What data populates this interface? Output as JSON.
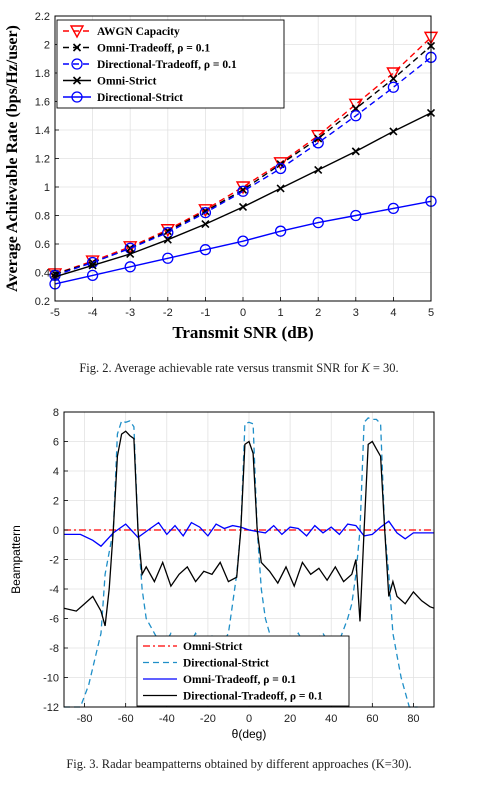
{
  "chart_data": [
    {
      "type": "line",
      "title": "",
      "xlabel": "Transmit SNR (dB)",
      "ylabel": "Average Achievable Rate (bps/Hz/user)",
      "xlim": [
        -5,
        5
      ],
      "ylim": [
        0.2,
        2.2
      ],
      "xticks": [
        -5,
        -4,
        -3,
        -2,
        -1,
        0,
        1,
        2,
        3,
        4,
        5
      ],
      "yticks": [
        0.2,
        0.4,
        0.6,
        0.8,
        1,
        1.2,
        1.4,
        1.6,
        1.8,
        2,
        2.2
      ],
      "grid": true,
      "legend_position": "top-left",
      "x": [
        -5,
        -4,
        -3,
        -2,
        -1,
        0,
        1,
        2,
        3,
        4,
        5
      ],
      "series": [
        {
          "name": "AWGN Capacity",
          "color": "#ff0000",
          "dash": "dashed",
          "marker": "triangle-down",
          "values": [
            0.39,
            0.48,
            0.58,
            0.7,
            0.84,
            1.0,
            1.17,
            1.36,
            1.58,
            1.8,
            2.05
          ]
        },
        {
          "name": "Omni-Tradeoff, ρ = 0.1",
          "color": "#000000",
          "dash": "dashed",
          "marker": "x",
          "values": [
            0.39,
            0.47,
            0.57,
            0.69,
            0.83,
            0.98,
            1.16,
            1.34,
            1.55,
            1.76,
            1.99
          ]
        },
        {
          "name": "Directional-Tradeoff, ρ = 0.1",
          "color": "#0000ff",
          "dash": "dashed",
          "marker": "circle",
          "values": [
            0.38,
            0.47,
            0.57,
            0.68,
            0.82,
            0.97,
            1.13,
            1.31,
            1.5,
            1.7,
            1.91
          ]
        },
        {
          "name": "Omni-Strict",
          "color": "#000000",
          "dash": "solid",
          "marker": "x",
          "values": [
            0.37,
            0.45,
            0.53,
            0.63,
            0.74,
            0.86,
            0.99,
            1.12,
            1.25,
            1.39,
            1.52
          ]
        },
        {
          "name": "Directional-Strict",
          "color": "#0000ff",
          "dash": "solid",
          "marker": "circle",
          "values": [
            0.32,
            0.38,
            0.44,
            0.5,
            0.56,
            0.62,
            0.69,
            0.75,
            0.8,
            0.85,
            0.9
          ]
        }
      ]
    },
    {
      "type": "line",
      "title": "",
      "xlabel": "θ(deg)",
      "ylabel": "Beampattern",
      "xlim": [
        -90,
        90
      ],
      "ylim": [
        -12,
        8
      ],
      "xticks": [
        -80,
        -60,
        -40,
        -20,
        0,
        20,
        40,
        60,
        80
      ],
      "yticks": [
        -12,
        -10,
        -8,
        -6,
        -4,
        -2,
        0,
        2,
        4,
        6,
        8
      ],
      "grid": true,
      "legend_position": "bottom-center",
      "series": [
        {
          "name": "Omni-Strict",
          "color": "#ff0000",
          "dash": "dashdot",
          "x": [
            -90,
            90
          ],
          "values": [
            0,
            0
          ]
        },
        {
          "name": "Directional-Strict",
          "color": "#1f8fc8",
          "dash": "dashed",
          "x": [
            -90,
            -82,
            -78,
            -72,
            -70,
            -66,
            -64,
            -62,
            -60,
            -58,
            -56,
            -54,
            -52,
            -50,
            -46,
            -42,
            -38,
            -34,
            -30,
            -26,
            -22,
            -18,
            -14,
            -10,
            -8,
            -6,
            -4,
            -2,
            0,
            2,
            4,
            6,
            8,
            10,
            12,
            16,
            20,
            24,
            28,
            32,
            36,
            40,
            44,
            48,
            50,
            52,
            54,
            56,
            58,
            60,
            62,
            64,
            66,
            68,
            70,
            74,
            78,
            82
          ],
          "values": [
            -12,
            -12,
            -10.5,
            -7,
            -3,
            0,
            6.5,
            7.4,
            7.3,
            7.4,
            7,
            0,
            -4,
            -6,
            -7,
            -8,
            -7,
            -7.5,
            -8,
            -7,
            -8,
            -7.2,
            -8,
            -7,
            -5,
            -3,
            0,
            7.2,
            7.3,
            7.2,
            0,
            -4,
            -6,
            -7,
            -8,
            -7.5,
            -8,
            -7,
            -8,
            -7.5,
            -7,
            -8,
            -7.5,
            -6,
            -5,
            -3,
            0,
            7.3,
            7.6,
            7.5,
            7.5,
            7.2,
            0,
            -3,
            -7,
            -10,
            -12,
            -12
          ]
        },
        {
          "name": "Omni-Tradeoff, ρ = 0.1",
          "color": "#0000ff",
          "dash": "solid",
          "x": [
            -90,
            -82,
            -76,
            -72,
            -66,
            -60,
            -54,
            -48,
            -44,
            -40,
            -36,
            -32,
            -28,
            -24,
            -20,
            -16,
            -12,
            -8,
            -4,
            0,
            4,
            8,
            12,
            16,
            20,
            24,
            28,
            32,
            36,
            40,
            44,
            48,
            52,
            56,
            60,
            64,
            68,
            72,
            76,
            80,
            84,
            90
          ],
          "values": [
            -0.3,
            -0.3,
            -0.7,
            -1.1,
            -0.2,
            0.4,
            -0.5,
            0.1,
            0.5,
            -0.3,
            0.3,
            -0.4,
            0.5,
            0.2,
            -0.4,
            0.4,
            0.1,
            0.3,
            0.2,
            0.0,
            -0.1,
            -0.2,
            0.3,
            -0.3,
            0.2,
            0.1,
            -0.4,
            0.3,
            -0.2,
            0.2,
            -0.3,
            0.4,
            0.3,
            -0.4,
            -0.3,
            0.2,
            0.6,
            -0.2,
            -0.6,
            -0.2,
            -0.2,
            -0.2
          ]
        },
        {
          "name": "Directional-Tradeoff, ρ = 0.1",
          "color": "#000000",
          "dash": "solid",
          "x": [
            -90,
            -84,
            -80,
            -76,
            -72,
            -70,
            -68,
            -66,
            -64,
            -62,
            -60,
            -58,
            -56,
            -54,
            -52,
            -50,
            -46,
            -42,
            -38,
            -34,
            -30,
            -26,
            -22,
            -18,
            -14,
            -10,
            -6,
            -4,
            -2,
            0,
            2,
            4,
            6,
            10,
            14,
            18,
            22,
            26,
            30,
            34,
            38,
            42,
            46,
            50,
            52,
            54,
            56,
            58,
            60,
            62,
            64,
            66,
            68,
            70,
            72,
            76,
            80,
            84,
            88,
            90
          ],
          "values": [
            -5.3,
            -5.5,
            -5.0,
            -4.5,
            -5.5,
            -6.5,
            -4,
            0,
            5,
            6.5,
            6.7,
            6.4,
            6.2,
            0,
            -3,
            -2.5,
            -3.5,
            -2.2,
            -3.8,
            -3.0,
            -2.5,
            -3.5,
            -2.8,
            -3.0,
            -2.2,
            -3.5,
            -3.2,
            0,
            5.8,
            6.0,
            5.2,
            0,
            -2.2,
            -2.8,
            -3.6,
            -2.5,
            -3.8,
            -2.2,
            -3.0,
            -2.6,
            -3.4,
            -2.5,
            -3.5,
            -3.0,
            -2.0,
            -6.2,
            0,
            5.8,
            6.0,
            5.5,
            5.0,
            0,
            -4.5,
            -3.5,
            -4.5,
            -5.0,
            -4.2,
            -4.8,
            -5.2,
            -5.3
          ]
        }
      ]
    }
  ],
  "captions": {
    "fig2_prefix": "Fig. 2.   Average achievable rate versus transmit SNR for ",
    "fig2_var": "K",
    "fig2_suffix": " = 30.",
    "fig3": "Fig. 3.   Radar beampatterns obtained by different approaches (K=30)."
  }
}
